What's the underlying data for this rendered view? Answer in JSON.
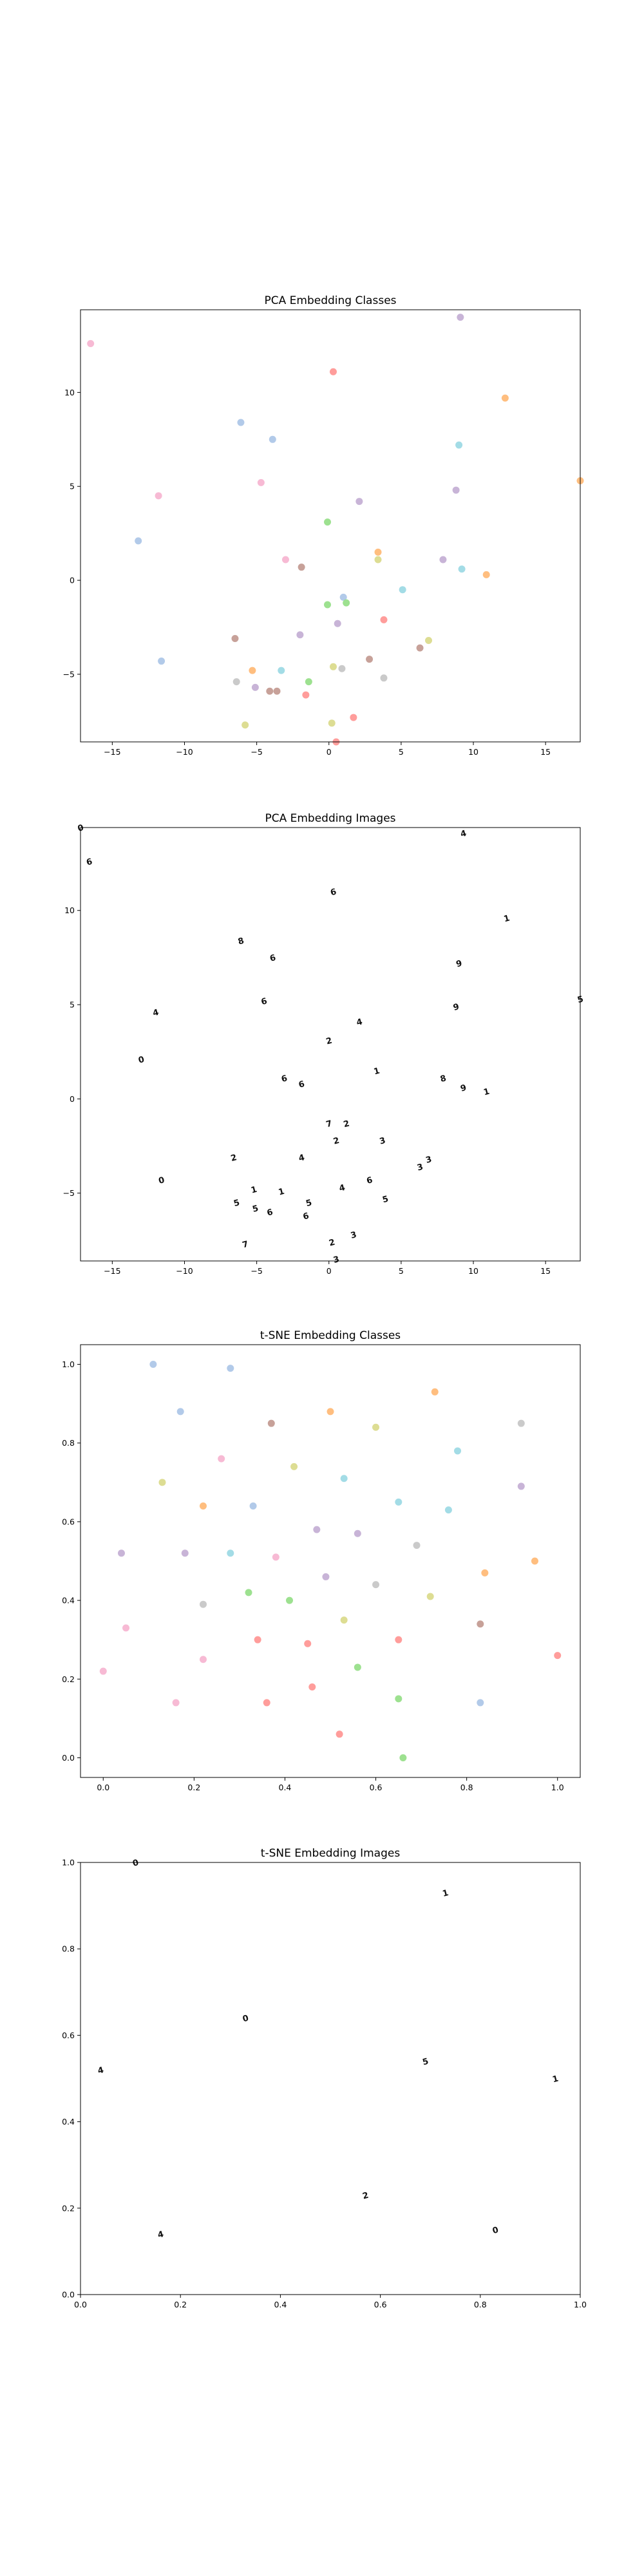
{
  "chart_data": [
    {
      "type": "scatter",
      "title": "PCA Embedding Classes",
      "xlim": [
        -17.2,
        17.4
      ],
      "ylim": [
        -8.6,
        14.4
      ],
      "xticks": [
        -15,
        -10,
        -5,
        0,
        5,
        10,
        15
      ],
      "xtick_labels": [
        "−15",
        "−10",
        "−5",
        "0",
        "5",
        "10",
        "15"
      ],
      "yticks": [
        -5,
        0,
        5,
        10
      ],
      "ytick_labels": [
        "−5",
        "0",
        "5",
        "10"
      ],
      "points": [
        {
          "x": -16.5,
          "y": 12.6,
          "color": "#f7b6d2"
        },
        {
          "x": 9.1,
          "y": 14.0,
          "color": "#c5b0d5"
        },
        {
          "x": 0.3,
          "y": 11.1,
          "color": "#ff9896"
        },
        {
          "x": 12.2,
          "y": 9.7,
          "color": "#ffbb78"
        },
        {
          "x": -6.1,
          "y": 8.4,
          "color": "#aec7e8"
        },
        {
          "x": -3.9,
          "y": 7.5,
          "color": "#aec7e8"
        },
        {
          "x": 9.0,
          "y": 7.2,
          "color": "#9edae5"
        },
        {
          "x": -11.8,
          "y": 4.5,
          "color": "#f7b6d2"
        },
        {
          "x": -4.7,
          "y": 5.2,
          "color": "#f7b6d2"
        },
        {
          "x": 8.8,
          "y": 4.8,
          "color": "#c5b0d5"
        },
        {
          "x": 17.4,
          "y": 5.3,
          "color": "#ffbb78"
        },
        {
          "x": 2.1,
          "y": 4.2,
          "color": "#c5b0d5"
        },
        {
          "x": -0.1,
          "y": 3.1,
          "color": "#98df8a"
        },
        {
          "x": -13.2,
          "y": 2.1,
          "color": "#aec7e8"
        },
        {
          "x": 3.4,
          "y": 1.5,
          "color": "#ffbb78"
        },
        {
          "x": 3.4,
          "y": 1.1,
          "color": "#dbdb8d"
        },
        {
          "x": -3.0,
          "y": 1.1,
          "color": "#f7b6d2"
        },
        {
          "x": -1.9,
          "y": 0.7,
          "color": "#c49c94"
        },
        {
          "x": 7.9,
          "y": 1.1,
          "color": "#c5b0d5"
        },
        {
          "x": 9.2,
          "y": 0.6,
          "color": "#9edae5"
        },
        {
          "x": 10.9,
          "y": 0.3,
          "color": "#ffbb78"
        },
        {
          "x": 5.1,
          "y": -0.5,
          "color": "#9edae5"
        },
        {
          "x": 1.0,
          "y": -0.9,
          "color": "#aec7e8"
        },
        {
          "x": 1.2,
          "y": -1.2,
          "color": "#98df8a"
        },
        {
          "x": -0.1,
          "y": -1.3,
          "color": "#98df8a"
        },
        {
          "x": 0.6,
          "y": -2.3,
          "color": "#c5b0d5"
        },
        {
          "x": 3.8,
          "y": -2.1,
          "color": "#ff9896"
        },
        {
          "x": -6.5,
          "y": -3.1,
          "color": "#c49c94"
        },
        {
          "x": -2.0,
          "y": -2.9,
          "color": "#c5b0d5"
        },
        {
          "x": 6.9,
          "y": -3.2,
          "color": "#dbdb8d"
        },
        {
          "x": 6.3,
          "y": -3.6,
          "color": "#c49c94"
        },
        {
          "x": -11.6,
          "y": -4.3,
          "color": "#aec7e8"
        },
        {
          "x": 2.8,
          "y": -4.2,
          "color": "#c49c94"
        },
        {
          "x": 0.3,
          "y": -4.6,
          "color": "#dbdb8d"
        },
        {
          "x": 0.9,
          "y": -4.7,
          "color": "#c7c7c7"
        },
        {
          "x": -5.3,
          "y": -4.8,
          "color": "#ffbb78"
        },
        {
          "x": -3.3,
          "y": -4.8,
          "color": "#9edae5"
        },
        {
          "x": 3.8,
          "y": -5.2,
          "color": "#c7c7c7"
        },
        {
          "x": -6.4,
          "y": -5.4,
          "color": "#c7c7c7"
        },
        {
          "x": -1.4,
          "y": -5.4,
          "color": "#98df8a"
        },
        {
          "x": -5.1,
          "y": -5.7,
          "color": "#c5b0d5"
        },
        {
          "x": -4.1,
          "y": -5.9,
          "color": "#c49c94"
        },
        {
          "x": -3.6,
          "y": -5.9,
          "color": "#c49c94"
        },
        {
          "x": -1.6,
          "y": -6.1,
          "color": "#ff9896"
        },
        {
          "x": 1.7,
          "y": -7.3,
          "color": "#ff9896"
        },
        {
          "x": -5.8,
          "y": -7.7,
          "color": "#dbdb8d"
        },
        {
          "x": 0.2,
          "y": -7.6,
          "color": "#dbdb8d"
        },
        {
          "x": 0.5,
          "y": -8.6,
          "color": "#ff9896"
        }
      ]
    },
    {
      "type": "scatter",
      "title": "PCA Embedding Images",
      "xlim": [
        -17.2,
        17.4
      ],
      "ylim": [
        -8.6,
        14.4
      ],
      "xticks": [
        -15,
        -10,
        -5,
        0,
        5,
        10,
        15
      ],
      "xtick_labels": [
        "−15",
        "−10",
        "−5",
        "0",
        "5",
        "10",
        "15"
      ],
      "yticks": [
        -5,
        0,
        5,
        10
      ],
      "ytick_labels": [
        "−5",
        "0",
        "5",
        "10"
      ],
      "points": [
        {
          "x": -17.2,
          "y": 14.4,
          "label": "0"
        },
        {
          "x": -16.6,
          "y": 12.6,
          "label": "6"
        },
        {
          "x": 9.3,
          "y": 14.1,
          "label": "4"
        },
        {
          "x": 0.3,
          "y": 11.0,
          "label": "6"
        },
        {
          "x": 12.3,
          "y": 9.6,
          "label": "1"
        },
        {
          "x": -6.1,
          "y": 8.4,
          "label": "8"
        },
        {
          "x": -3.9,
          "y": 7.5,
          "label": "6"
        },
        {
          "x": 9.0,
          "y": 7.2,
          "label": "9"
        },
        {
          "x": -12.0,
          "y": 4.6,
          "label": "4"
        },
        {
          "x": -4.5,
          "y": 5.2,
          "label": "6"
        },
        {
          "x": 8.8,
          "y": 4.9,
          "label": "9"
        },
        {
          "x": 17.4,
          "y": 5.3,
          "label": "5"
        },
        {
          "x": 2.1,
          "y": 4.1,
          "label": "4"
        },
        {
          "x": 0.0,
          "y": 3.1,
          "label": "2"
        },
        {
          "x": -13.0,
          "y": 2.1,
          "label": "0"
        },
        {
          "x": 3.3,
          "y": 1.5,
          "label": "1"
        },
        {
          "x": -3.1,
          "y": 1.1,
          "label": "6"
        },
        {
          "x": -1.9,
          "y": 0.8,
          "label": "6"
        },
        {
          "x": 7.9,
          "y": 1.1,
          "label": "8"
        },
        {
          "x": 9.3,
          "y": 0.6,
          "label": "9"
        },
        {
          "x": 10.9,
          "y": 0.4,
          "label": "1"
        },
        {
          "x": 1.2,
          "y": -1.3,
          "label": "2"
        },
        {
          "x": 0.0,
          "y": -1.3,
          "label": "7"
        },
        {
          "x": 0.5,
          "y": -2.2,
          "label": "2"
        },
        {
          "x": 3.7,
          "y": -2.2,
          "label": "3"
        },
        {
          "x": -6.6,
          "y": -3.1,
          "label": "2"
        },
        {
          "x": -1.9,
          "y": -3.1,
          "label": "4"
        },
        {
          "x": 6.9,
          "y": -3.2,
          "label": "3"
        },
        {
          "x": 6.3,
          "y": -3.6,
          "label": "3"
        },
        {
          "x": -11.6,
          "y": -4.3,
          "label": "0"
        },
        {
          "x": 2.8,
          "y": -4.3,
          "label": "6"
        },
        {
          "x": -5.2,
          "y": -4.8,
          "label": "1"
        },
        {
          "x": -3.3,
          "y": -4.9,
          "label": "1"
        },
        {
          "x": 0.9,
          "y": -4.7,
          "label": "4"
        },
        {
          "x": 3.9,
          "y": -5.3,
          "label": "5"
        },
        {
          "x": -6.4,
          "y": -5.5,
          "label": "5"
        },
        {
          "x": -5.1,
          "y": -5.8,
          "label": "5"
        },
        {
          "x": -4.1,
          "y": -6.0,
          "label": "6"
        },
        {
          "x": -1.4,
          "y": -5.5,
          "label": "5"
        },
        {
          "x": -1.6,
          "y": -6.2,
          "label": "6"
        },
        {
          "x": 1.7,
          "y": -7.2,
          "label": "3"
        },
        {
          "x": -5.8,
          "y": -7.7,
          "label": "7"
        },
        {
          "x": 0.2,
          "y": -7.6,
          "label": "2"
        },
        {
          "x": 0.5,
          "y": -8.5,
          "label": "3"
        }
      ]
    },
    {
      "type": "scatter",
      "title": "t-SNE Embedding Classes",
      "xlim": [
        -0.05,
        1.05
      ],
      "ylim": [
        -0.05,
        1.05
      ],
      "xticks": [
        0.0,
        0.2,
        0.4,
        0.6,
        0.8,
        1.0
      ],
      "xtick_labels": [
        "0.0",
        "0.2",
        "0.4",
        "0.6",
        "0.8",
        "1.0"
      ],
      "yticks": [
        0.0,
        0.2,
        0.4,
        0.6,
        0.8,
        1.0
      ],
      "ytick_labels": [
        "0.0",
        "0.2",
        "0.4",
        "0.6",
        "0.8",
        "1.0"
      ],
      "points": [
        {
          "x": 0.11,
          "y": 1.0,
          "color": "#aec7e8"
        },
        {
          "x": 0.28,
          "y": 0.99,
          "color": "#aec7e8"
        },
        {
          "x": 0.73,
          "y": 0.93,
          "color": "#ffbb78"
        },
        {
          "x": 0.17,
          "y": 0.88,
          "color": "#aec7e8"
        },
        {
          "x": 0.5,
          "y": 0.88,
          "color": "#ffbb78"
        },
        {
          "x": 0.37,
          "y": 0.85,
          "color": "#c49c94"
        },
        {
          "x": 0.6,
          "y": 0.84,
          "color": "#dbdb8d"
        },
        {
          "x": 0.92,
          "y": 0.85,
          "color": "#c7c7c7"
        },
        {
          "x": 0.78,
          "y": 0.78,
          "color": "#9edae5"
        },
        {
          "x": 0.26,
          "y": 0.76,
          "color": "#f7b6d2"
        },
        {
          "x": 0.42,
          "y": 0.74,
          "color": "#dbdb8d"
        },
        {
          "x": 0.13,
          "y": 0.7,
          "color": "#dbdb8d"
        },
        {
          "x": 0.53,
          "y": 0.71,
          "color": "#9edae5"
        },
        {
          "x": 0.92,
          "y": 0.69,
          "color": "#c5b0d5"
        },
        {
          "x": 0.22,
          "y": 0.64,
          "color": "#ffbb78"
        },
        {
          "x": 0.33,
          "y": 0.64,
          "color": "#aec7e8"
        },
        {
          "x": 0.65,
          "y": 0.65,
          "color": "#9edae5"
        },
        {
          "x": 0.76,
          "y": 0.63,
          "color": "#9edae5"
        },
        {
          "x": 0.47,
          "y": 0.58,
          "color": "#c5b0d5"
        },
        {
          "x": 0.56,
          "y": 0.57,
          "color": "#c5b0d5"
        },
        {
          "x": 0.69,
          "y": 0.54,
          "color": "#c7c7c7"
        },
        {
          "x": 0.04,
          "y": 0.52,
          "color": "#c5b0d5"
        },
        {
          "x": 0.18,
          "y": 0.52,
          "color": "#c5b0d5"
        },
        {
          "x": 0.28,
          "y": 0.52,
          "color": "#9edae5"
        },
        {
          "x": 0.38,
          "y": 0.51,
          "color": "#f7b6d2"
        },
        {
          "x": 0.95,
          "y": 0.5,
          "color": "#ffbb78"
        },
        {
          "x": 0.49,
          "y": 0.46,
          "color": "#c5b0d5"
        },
        {
          "x": 0.6,
          "y": 0.44,
          "color": "#c7c7c7"
        },
        {
          "x": 0.84,
          "y": 0.47,
          "color": "#ffbb78"
        },
        {
          "x": 0.32,
          "y": 0.42,
          "color": "#98df8a"
        },
        {
          "x": 0.41,
          "y": 0.4,
          "color": "#98df8a"
        },
        {
          "x": 0.72,
          "y": 0.41,
          "color": "#dbdb8d"
        },
        {
          "x": 0.22,
          "y": 0.39,
          "color": "#c7c7c7"
        },
        {
          "x": 0.53,
          "y": 0.35,
          "color": "#dbdb8d"
        },
        {
          "x": 0.83,
          "y": 0.34,
          "color": "#c49c94"
        },
        {
          "x": 0.05,
          "y": 0.33,
          "color": "#f7b6d2"
        },
        {
          "x": 0.34,
          "y": 0.3,
          "color": "#ff9896"
        },
        {
          "x": 0.45,
          "y": 0.29,
          "color": "#ff9896"
        },
        {
          "x": 0.65,
          "y": 0.3,
          "color": "#ff9896"
        },
        {
          "x": 1.0,
          "y": 0.26,
          "color": "#ff9896"
        },
        {
          "x": 0.22,
          "y": 0.25,
          "color": "#f7b6d2"
        },
        {
          "x": 0.56,
          "y": 0.23,
          "color": "#98df8a"
        },
        {
          "x": 0.0,
          "y": 0.22,
          "color": "#f7b6d2"
        },
        {
          "x": 0.46,
          "y": 0.18,
          "color": "#ff9896"
        },
        {
          "x": 0.36,
          "y": 0.14,
          "color": "#ff9896"
        },
        {
          "x": 0.16,
          "y": 0.14,
          "color": "#f7b6d2"
        },
        {
          "x": 0.65,
          "y": 0.15,
          "color": "#98df8a"
        },
        {
          "x": 0.83,
          "y": 0.14,
          "color": "#aec7e8"
        },
        {
          "x": 0.52,
          "y": 0.06,
          "color": "#ff9896"
        },
        {
          "x": 0.66,
          "y": 0.0,
          "color": "#98df8a"
        }
      ]
    },
    {
      "type": "scatter",
      "title": "t-SNE Embedding Images",
      "xlim": [
        0.0,
        1.0
      ],
      "ylim": [
        0.0,
        1.0
      ],
      "xticks": [
        0.0,
        0.2,
        0.4,
        0.6,
        0.8,
        1.0
      ],
      "xtick_labels": [
        "0.0",
        "0.2",
        "0.4",
        "0.6",
        "0.8",
        "1.0"
      ],
      "yticks": [
        0.0,
        0.2,
        0.4,
        0.6,
        0.8,
        1.0
      ],
      "ytick_labels": [
        "0.0",
        "0.2",
        "0.4",
        "0.6",
        "0.8",
        "1.0"
      ],
      "points": [
        {
          "x": 0.11,
          "y": 1.0,
          "label": "0"
        },
        {
          "x": 0.73,
          "y": 0.93,
          "label": "1"
        },
        {
          "x": 0.33,
          "y": 0.64,
          "label": "0"
        },
        {
          "x": 0.69,
          "y": 0.54,
          "label": "5"
        },
        {
          "x": 0.04,
          "y": 0.52,
          "label": "4"
        },
        {
          "x": 0.95,
          "y": 0.5,
          "label": "1"
        },
        {
          "x": 0.57,
          "y": 0.23,
          "label": "2"
        },
        {
          "x": 0.16,
          "y": 0.14,
          "label": "4"
        },
        {
          "x": 0.83,
          "y": 0.15,
          "label": "0"
        }
      ]
    }
  ]
}
